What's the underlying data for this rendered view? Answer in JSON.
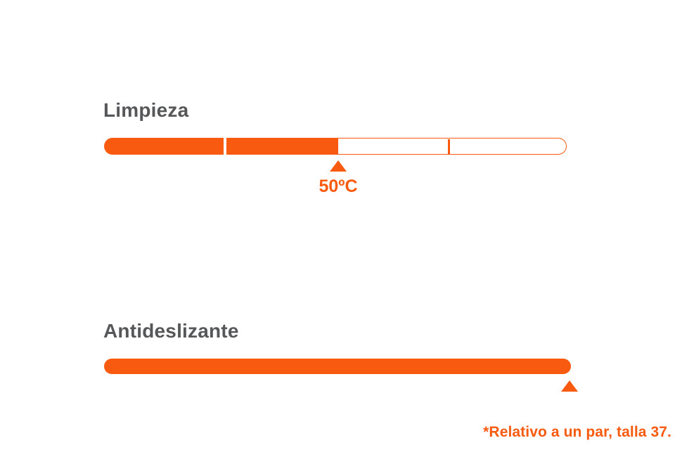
{
  "colors": {
    "accent_orange": "#f85a10",
    "title_gray": "#565759",
    "background": "#ffffff"
  },
  "sections": [
    {
      "title": "Limpieza",
      "bar": {
        "type": "segmented",
        "segments_total": 4,
        "segments_filled": 2,
        "fill_percent": 50
      },
      "marker": {
        "label": "50ºC",
        "position_percent": 50
      }
    },
    {
      "title": "Antideslizante",
      "bar": {
        "type": "solid",
        "fill_percent": 100
      },
      "marker": {
        "label": "",
        "position_percent": 100
      }
    }
  ],
  "footnote": "*Relativo a un par, talla 37.",
  "chart_data": {
    "type": "bar",
    "orientation": "horizontal",
    "categories": [
      "Limpieza",
      "Antideslizante"
    ],
    "values": [
      50,
      100
    ],
    "value_unit": "percent_of_scale",
    "scale": {
      "segments": 4,
      "range": [
        0,
        100
      ]
    },
    "annotations": [
      {
        "category": "Limpieza",
        "marker": "triangle-up",
        "label": "50ºC",
        "position_percent": 50
      },
      {
        "category": "Antideslizante",
        "marker": "triangle-up",
        "label": "",
        "position_percent": 100
      }
    ],
    "title": "",
    "xlabel": "",
    "ylabel": "",
    "legend": false,
    "grid": false,
    "footnote": "*Relativo a un par, talla 37."
  }
}
